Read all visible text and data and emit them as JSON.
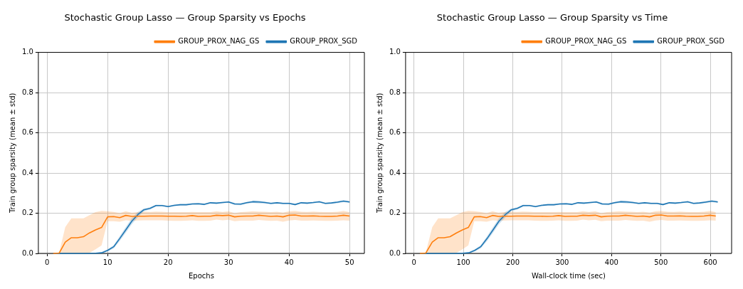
{
  "chart_data": [
    {
      "type": "line",
      "title": "Stochastic Group Lasso — Group Sparsity vs Epochs",
      "xlabel": "Epochs",
      "ylabel": "Train group sparsity (mean ± std)",
      "x": [
        1,
        2,
        3,
        4,
        5,
        6,
        7,
        8,
        9,
        10,
        11,
        12,
        13,
        14,
        15,
        16,
        17,
        18,
        19,
        20,
        21,
        22,
        23,
        24,
        25,
        26,
        27,
        28,
        29,
        30,
        31,
        32,
        33,
        34,
        35,
        36,
        37,
        38,
        39,
        40,
        41,
        42,
        43,
        44,
        45,
        46,
        47,
        48,
        49,
        50
      ],
      "series": [
        {
          "name": "GROUP_PROX_SGD",
          "color": "#1f77b4",
          "values": [
            0,
            0,
            0,
            0,
            0,
            0,
            0,
            0.001,
            0.003,
            0.015,
            0.033,
            0.074,
            0.117,
            0.16,
            0.193,
            0.217,
            0.224,
            0.238,
            0.238,
            0.233,
            0.239,
            0.242,
            0.242,
            0.246,
            0.247,
            0.244,
            0.252,
            0.25,
            0.253,
            0.256,
            0.246,
            0.245,
            0.252,
            0.257,
            0.256,
            0.253,
            0.249,
            0.252,
            0.249,
            0.249,
            0.243,
            0.252,
            0.25,
            0.253,
            0.257,
            0.249,
            0.251,
            0.255,
            0.26,
            0.256
          ],
          "lower": [
            0,
            0,
            0,
            0,
            0,
            0,
            0,
            0,
            0,
            0.01,
            0.025,
            0.062,
            0.103,
            0.145,
            0.18,
            0.21,
            0.219,
            0.233,
            0.234,
            0.229,
            0.235,
            0.238,
            0.238,
            0.242,
            0.243,
            0.24,
            0.248,
            0.246,
            0.249,
            0.252,
            0.241,
            0.24,
            0.247,
            0.251,
            0.249,
            0.248,
            0.245,
            0.248,
            0.245,
            0.245,
            0.239,
            0.248,
            0.246,
            0.249,
            0.253,
            0.245,
            0.247,
            0.25,
            0.255,
            0.251
          ],
          "upper": [
            0,
            0,
            0,
            0,
            0,
            0,
            0,
            0.002,
            0.006,
            0.02,
            0.041,
            0.086,
            0.131,
            0.175,
            0.206,
            0.224,
            0.229,
            0.243,
            0.242,
            0.237,
            0.243,
            0.246,
            0.246,
            0.25,
            0.251,
            0.248,
            0.256,
            0.254,
            0.257,
            0.26,
            0.251,
            0.25,
            0.257,
            0.263,
            0.263,
            0.258,
            0.253,
            0.256,
            0.253,
            0.253,
            0.247,
            0.256,
            0.254,
            0.257,
            0.261,
            0.253,
            0.255,
            0.26,
            0.265,
            0.261
          ]
        },
        {
          "name": "GROUP_PROX_NAG_GS",
          "color": "#ff7f0e",
          "values": [
            0,
            0.002,
            0.056,
            0.078,
            0.078,
            0.083,
            0.102,
            0.117,
            0.129,
            0.182,
            0.183,
            0.178,
            0.189,
            0.184,
            0.185,
            0.185,
            0.186,
            0.186,
            0.186,
            0.185,
            0.185,
            0.184,
            0.185,
            0.188,
            0.184,
            0.185,
            0.185,
            0.19,
            0.188,
            0.19,
            0.182,
            0.185,
            0.186,
            0.186,
            0.19,
            0.187,
            0.184,
            0.186,
            0.182,
            0.19,
            0.191,
            0.186,
            0.186,
            0.187,
            0.185,
            0.184,
            0.184,
            0.186,
            0.19,
            0.186
          ],
          "lower": [
            0,
            0,
            0,
            0,
            0,
            0,
            0.003,
            0.02,
            0.04,
            0.16,
            0.16,
            0.158,
            0.165,
            0.162,
            0.164,
            0.165,
            0.165,
            0.165,
            0.165,
            0.163,
            0.162,
            0.162,
            0.163,
            0.165,
            0.162,
            0.162,
            0.163,
            0.168,
            0.165,
            0.167,
            0.16,
            0.163,
            0.163,
            0.163,
            0.166,
            0.164,
            0.162,
            0.163,
            0.158,
            0.164,
            0.166,
            0.163,
            0.163,
            0.164,
            0.163,
            0.162,
            0.162,
            0.163,
            0.165,
            0.163
          ],
          "upper": [
            0,
            0.005,
            0.131,
            0.174,
            0.174,
            0.174,
            0.19,
            0.205,
            0.212,
            0.21,
            0.206,
            0.2,
            0.21,
            0.202,
            0.205,
            0.208,
            0.206,
            0.208,
            0.207,
            0.205,
            0.205,
            0.205,
            0.205,
            0.206,
            0.205,
            0.205,
            0.205,
            0.21,
            0.206,
            0.21,
            0.2,
            0.205,
            0.207,
            0.21,
            0.208,
            0.207,
            0.205,
            0.207,
            0.203,
            0.21,
            0.212,
            0.207,
            0.206,
            0.208,
            0.206,
            0.205,
            0.205,
            0.207,
            0.212,
            0.205
          ]
        }
      ],
      "xlim": [
        -1.45,
        52.45
      ],
      "xticks": [
        0,
        10,
        20,
        30,
        40,
        50
      ],
      "ylim": [
        0,
        1
      ],
      "yticks": [
        {
          "value": 0,
          "label": "0.0"
        },
        {
          "value": 0.2,
          "label": "0.2"
        },
        {
          "value": 0.4,
          "label": "0.4"
        },
        {
          "value": 0.6,
          "label": "0.6"
        },
        {
          "value": 0.8,
          "label": "0.8"
        },
        {
          "value": 1,
          "label": "1.0"
        }
      ],
      "grid": true,
      "legend": "top right"
    },
    {
      "type": "line",
      "title": "Stochastic Group Lasso — Group Sparsity vs Time",
      "xlabel": "Wall-clock time (sec)",
      "ylabel": "Train group sparsity (mean ± std)",
      "series": [
        {
          "name": "GROUP_PROX_SGD",
          "color": "#1f77b4",
          "x": [
            12,
            25,
            37,
            49,
            62,
            74,
            86,
            98,
            111,
            123,
            135,
            148,
            160,
            172,
            185,
            197,
            209,
            221,
            234,
            246,
            258,
            271,
            283,
            295,
            308,
            320,
            332,
            344,
            357,
            369,
            381,
            394,
            406,
            418,
            431,
            443,
            455,
            467,
            480,
            492,
            504,
            517,
            529,
            541,
            554,
            566,
            578,
            590,
            603,
            615
          ],
          "values": [
            0,
            0,
            0,
            0,
            0,
            0,
            0,
            0.001,
            0.003,
            0.015,
            0.033,
            0.074,
            0.117,
            0.16,
            0.193,
            0.217,
            0.224,
            0.238,
            0.238,
            0.233,
            0.239,
            0.242,
            0.242,
            0.246,
            0.247,
            0.244,
            0.252,
            0.25,
            0.253,
            0.256,
            0.246,
            0.245,
            0.252,
            0.257,
            0.256,
            0.253,
            0.249,
            0.252,
            0.249,
            0.249,
            0.243,
            0.252,
            0.25,
            0.253,
            0.257,
            0.249,
            0.251,
            0.255,
            0.26,
            0.256
          ],
          "lower": [
            0,
            0,
            0,
            0,
            0,
            0,
            0,
            0,
            0,
            0.01,
            0.025,
            0.062,
            0.103,
            0.145,
            0.18,
            0.21,
            0.219,
            0.233,
            0.234,
            0.229,
            0.235,
            0.238,
            0.238,
            0.242,
            0.243,
            0.24,
            0.248,
            0.246,
            0.249,
            0.252,
            0.241,
            0.24,
            0.247,
            0.251,
            0.249,
            0.248,
            0.245,
            0.248,
            0.245,
            0.245,
            0.239,
            0.248,
            0.246,
            0.249,
            0.253,
            0.245,
            0.247,
            0.25,
            0.255,
            0.251
          ],
          "upper": [
            0,
            0,
            0,
            0,
            0,
            0,
            0,
            0.002,
            0.006,
            0.02,
            0.041,
            0.086,
            0.131,
            0.175,
            0.206,
            0.224,
            0.229,
            0.243,
            0.242,
            0.237,
            0.243,
            0.246,
            0.246,
            0.25,
            0.251,
            0.248,
            0.256,
            0.254,
            0.257,
            0.26,
            0.251,
            0.25,
            0.257,
            0.263,
            0.263,
            0.258,
            0.253,
            0.256,
            0.253,
            0.253,
            0.247,
            0.256,
            0.254,
            0.257,
            0.261,
            0.253,
            0.255,
            0.26,
            0.265,
            0.261
          ]
        },
        {
          "name": "GROUP_PROX_NAG_GS",
          "color": "#ff7f0e",
          "x": [
            12,
            24,
            37,
            49,
            61,
            73,
            86,
            98,
            110,
            122,
            134,
            147,
            159,
            171,
            183,
            196,
            208,
            220,
            232,
            244,
            257,
            269,
            281,
            293,
            306,
            318,
            330,
            342,
            354,
            367,
            379,
            391,
            403,
            415,
            428,
            440,
            452,
            464,
            477,
            489,
            501,
            513,
            525,
            538,
            550,
            562,
            574,
            587,
            599,
            611
          ],
          "values": [
            0,
            0.002,
            0.056,
            0.078,
            0.078,
            0.083,
            0.102,
            0.117,
            0.129,
            0.182,
            0.183,
            0.178,
            0.189,
            0.184,
            0.185,
            0.185,
            0.186,
            0.186,
            0.186,
            0.185,
            0.185,
            0.184,
            0.185,
            0.188,
            0.184,
            0.185,
            0.185,
            0.19,
            0.188,
            0.19,
            0.182,
            0.185,
            0.186,
            0.186,
            0.19,
            0.187,
            0.184,
            0.186,
            0.182,
            0.19,
            0.191,
            0.186,
            0.186,
            0.187,
            0.185,
            0.184,
            0.184,
            0.186,
            0.19,
            0.186
          ],
          "lower": [
            0,
            0,
            0,
            0,
            0,
            0,
            0.003,
            0.02,
            0.04,
            0.16,
            0.16,
            0.158,
            0.165,
            0.162,
            0.164,
            0.165,
            0.165,
            0.165,
            0.165,
            0.163,
            0.162,
            0.162,
            0.163,
            0.165,
            0.162,
            0.162,
            0.163,
            0.168,
            0.165,
            0.167,
            0.16,
            0.163,
            0.163,
            0.163,
            0.166,
            0.164,
            0.162,
            0.163,
            0.158,
            0.164,
            0.166,
            0.163,
            0.163,
            0.164,
            0.163,
            0.162,
            0.162,
            0.163,
            0.165,
            0.163
          ],
          "upper": [
            0,
            0.005,
            0.131,
            0.174,
            0.174,
            0.174,
            0.19,
            0.205,
            0.212,
            0.21,
            0.206,
            0.2,
            0.21,
            0.202,
            0.205,
            0.208,
            0.206,
            0.208,
            0.207,
            0.205,
            0.205,
            0.205,
            0.205,
            0.206,
            0.205,
            0.205,
            0.205,
            0.21,
            0.206,
            0.21,
            0.2,
            0.205,
            0.207,
            0.21,
            0.208,
            0.207,
            0.205,
            0.207,
            0.203,
            0.21,
            0.212,
            0.207,
            0.206,
            0.208,
            0.206,
            0.205,
            0.205,
            0.207,
            0.212,
            0.205
          ]
        }
      ],
      "xlim": [
        -17,
        643
      ],
      "xticks": [
        0,
        100,
        200,
        300,
        400,
        500,
        600
      ],
      "ylim": [
        0,
        1
      ],
      "yticks": [
        {
          "value": 0,
          "label": "0.0"
        },
        {
          "value": 0.2,
          "label": "0.2"
        },
        {
          "value": 0.4,
          "label": "0.4"
        },
        {
          "value": 0.6,
          "label": "0.6"
        },
        {
          "value": 0.8,
          "label": "0.8"
        },
        {
          "value": 1,
          "label": "1.0"
        }
      ],
      "grid": true,
      "legend": "top right"
    }
  ]
}
